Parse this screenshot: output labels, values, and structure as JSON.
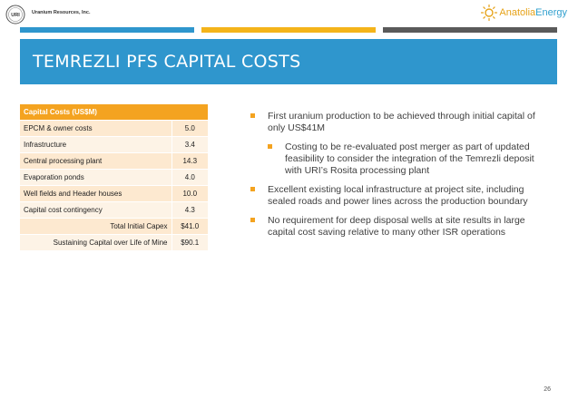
{
  "header": {
    "company_name": "Uranium Resources, Inc.",
    "uri_logo_text": "URI",
    "partner_logo_part1": "Anatolia",
    "partner_logo_part2": "Energy"
  },
  "colors": {
    "stripe_1": "#2f96cd",
    "stripe_2": "#f4b41a",
    "stripe_3": "#5a5a5a",
    "title_bar": "#2f96cd",
    "accent": "#f4a320"
  },
  "title": "TEMREZLI PFS CAPITAL COSTS",
  "table": {
    "header": "Capital Costs (US$M)",
    "rows": [
      {
        "label": "EPCM & owner costs",
        "value": "5.0"
      },
      {
        "label": "Infrastructure",
        "value": "3.4"
      },
      {
        "label": "Central processing plant",
        "value": "14.3"
      },
      {
        "label": "Evaporation ponds",
        "value": "4.0"
      },
      {
        "label": "Well fields and Header houses",
        "value": "10.0"
      },
      {
        "label": "Capital cost contingency",
        "value": "4.3"
      }
    ],
    "total": {
      "label": "Total Initial Capex",
      "value": "$41.0"
    },
    "sustaining": {
      "label": "Sustaining Capital over Life of Mine",
      "value": "$90.1"
    }
  },
  "bullets": [
    {
      "text": "First uranium production to be achieved through initial capital of only US$41M",
      "level": 1
    },
    {
      "text": "Costing to be re-evaluated post merger as part of updated feasibility to consider the integration of the Temrezli deposit with URI’s Rosita processing plant",
      "level": 2
    },
    {
      "text": "Excellent existing local infrastructure at project site, including sealed roads and power lines across the production boundary",
      "level": 1
    },
    {
      "text": "No requirement for deep disposal wells at site results in large capital cost saving relative to many other ISR operations",
      "level": 1
    }
  ],
  "page_number": "26"
}
